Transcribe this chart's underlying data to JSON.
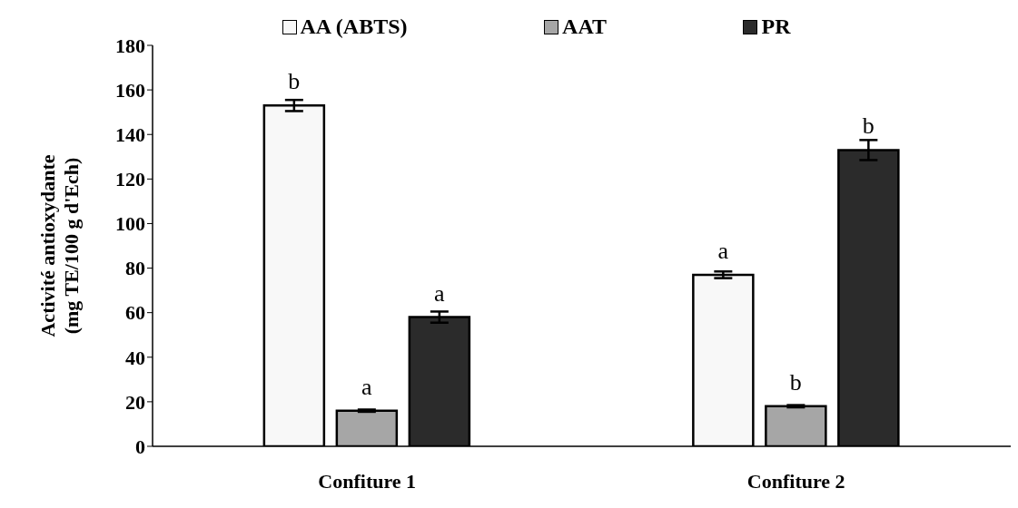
{
  "chart_data": {
    "type": "bar",
    "ylabel": "Activité antioxydante\n(mg TE/100 g d'Ech)",
    "categories": [
      "Confiture 1",
      "Confiture 2"
    ],
    "series": [
      {
        "name": "AA (ABTS)",
        "color": "#f8f8f8",
        "values": [
          153,
          77
        ],
        "errors": [
          2.5,
          1.5
        ],
        "value_labels": [
          "b",
          "a"
        ]
      },
      {
        "name": "AAT",
        "color": "#a6a6a6",
        "values": [
          16,
          18
        ],
        "errors": [
          0.5,
          0.5
        ],
        "value_labels": [
          "a",
          "b"
        ]
      },
      {
        "name": "PR",
        "color": "#2b2b2b",
        "values": [
          58,
          133
        ],
        "errors": [
          2.5,
          4.5
        ],
        "value_labels": [
          "a",
          "b"
        ]
      }
    ],
    "ylim": [
      0,
      180
    ],
    "yticks": [
      0,
      20,
      40,
      60,
      80,
      100,
      120,
      140,
      160,
      180
    ],
    "legend": "top",
    "grid": false
  }
}
